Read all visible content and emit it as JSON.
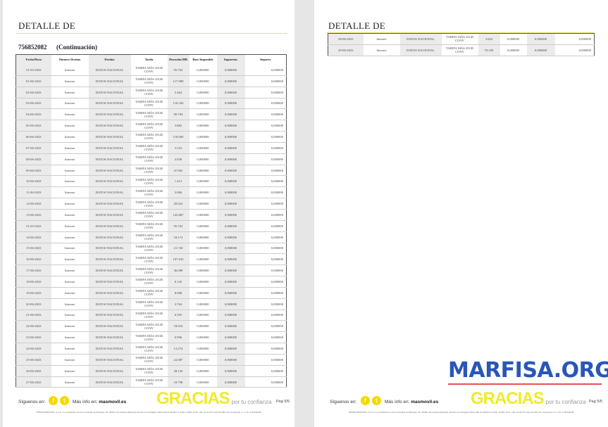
{
  "page1": {
    "title": "DETALLE DE",
    "number": "756852082",
    "continuation": "(Continuación)"
  },
  "page2": {
    "title": "DETALLE DE"
  },
  "columns": [
    "Fecha/Hora",
    "Número Destino",
    "Destino",
    "Tarifa",
    "Duración/MB",
    "Base Imponible",
    "Impuestos",
    "Importe"
  ],
  "rows": [
    [
      "31-05-2023",
      "Internet",
      "DATOS NACIONAL",
      "TARIFA MÁS 25GB CONV",
      "95.702",
      "0,000000",
      "0,000000",
      "0,000000"
    ],
    [
      "01-06-2023",
      "Internet",
      "DATOS NACIONAL",
      "TARIFA MÁS 25GB CONV",
      "117.988",
      "0,000000",
      "0,000000",
      "0,000000"
    ],
    [
      "02-06-2023",
      "Internet",
      "DATOS NACIONAL",
      "TARIFA MÁS 25GB CONV",
      "5.464",
      "0,000000",
      "0,000000",
      "0,000000"
    ],
    [
      "03-06-2023",
      "Internet",
      "DATOS NACIONAL",
      "TARIFA MÁS 25GB CONV",
      "110.326",
      "0,000000",
      "0,000000",
      "0,000000"
    ],
    [
      "04-06-2023",
      "Internet",
      "DATOS NACIONAL",
      "TARIFA MÁS 25GB CONV",
      "90.794",
      "0,000000",
      "0,000000",
      "0,000000"
    ],
    [
      "05-06-2023",
      "Internet",
      "DATOS NACIONAL",
      "TARIFA MÁS 25GB CONV",
      "3.882",
      "0,000000",
      "0,000000",
      "0,000000"
    ],
    [
      "06-06-2023",
      "Internet",
      "DATOS NACIONAL",
      "TARIFA MÁS 25GB CONV",
      "118.600",
      "0,000000",
      "0,000000",
      "0,000000"
    ],
    [
      "07-06-2023",
      "Internet",
      "DATOS NACIONAL",
      "TARIFA MÁS 25GB CONV",
      "3.552",
      "0,000000",
      "0,000000",
      "0,000000"
    ],
    [
      "08-06-2023",
      "Internet",
      "DATOS NACIONAL",
      "TARIFA MÁS 25GB CONV",
      "4.058",
      "0,000000",
      "0,000000",
      "0,000000"
    ],
    [
      "09-06-2023",
      "Internet",
      "DATOS NACIONAL",
      "TARIFA MÁS 25GB CONV",
      "47.902",
      "0,000000",
      "0,000000",
      "0,000000"
    ],
    [
      "10-06-2023",
      "Internet",
      "DATOS NACIONAL",
      "TARIFA MÁS 25GB CONV",
      "1.412",
      "0,000000",
      "0,000000",
      "0,000000"
    ],
    [
      "11-06-2023",
      "Internet",
      "DATOS NACIONAL",
      "TARIFA MÁS 25GB CONV",
      "3.066",
      "0,000000",
      "0,000000",
      "0,000000"
    ],
    [
      "12-06-2023",
      "Internet",
      "DATOS NACIONAL",
      "TARIFA MÁS 25GB CONV",
      "28.041",
      "0,000000",
      "0,000000",
      "0,000000"
    ],
    [
      "13-06-2023",
      "Internet",
      "DATOS NACIONAL",
      "TARIFA MÁS 25GB CONV",
      "143.687",
      "0,000000",
      "0,000000",
      "0,000000"
    ],
    [
      "31-05-2023",
      "Internet",
      "DATOS NACIONAL",
      "TARIFA MÁS 25GB CONV",
      "95.702",
      "0,000000",
      "0,000000",
      "0,000000"
    ],
    [
      "14-06-2023",
      "Internet",
      "DATOS NACIONAL",
      "TARIFA MÁS 25GB CONV",
      "18.174",
      "0,000000",
      "0,000000",
      "0,000000"
    ],
    [
      "15-06-2023",
      "Internet",
      "DATOS NACIONAL",
      "TARIFA MÁS 25GB CONV",
      "21.720",
      "0,000000",
      "0,000000",
      "0,000000"
    ],
    [
      "16-06-2023",
      "Internet",
      "DATOS NACIONAL",
      "TARIFA MÁS 25GB CONV",
      "107.633",
      "0,000000",
      "0,000000",
      "0,000000"
    ],
    [
      "17-06-2023",
      "Internet",
      "DATOS NACIONAL",
      "TARIFA MÁS 25GB CONV",
      "36.098",
      "0,000000",
      "0,000000",
      "0,000000"
    ],
    [
      "18-06-2023",
      "Internet",
      "DATOS NACIONAL",
      "TARIFA MÁS 25GB CONV",
      "0.145",
      "0,000000",
      "0,000000",
      "0,000000"
    ],
    [
      "19-06-2023",
      "Internet",
      "DATOS NACIONAL",
      "TARIFA MÁS 25GB CONV",
      "8.088",
      "0,000000",
      "0,000000",
      "0,000000"
    ],
    [
      "20-06-2023",
      "Internet",
      "DATOS NACIONAL",
      "TARIFA MÁS 25GB CONV",
      "2.764",
      "0,000000",
      "0,000000",
      "0,000000"
    ],
    [
      "21-06-2023",
      "Internet",
      "DATOS NACIONAL",
      "TARIFA MÁS 25GB CONV",
      "6.593",
      "0,000000",
      "0,000000",
      "0,000000"
    ],
    [
      "22-06-2023",
      "Internet",
      "DATOS NACIONAL",
      "TARIFA MÁS 25GB CONV",
      "18.810",
      "0,000000",
      "0,000000",
      "0,000000"
    ],
    [
      "23-06-2023",
      "Internet",
      "DATOS NACIONAL",
      "TARIFA MÁS 25GB CONV",
      "0.996",
      "0,000000",
      "0,000000",
      "0,000000"
    ],
    [
      "24-06-2023",
      "Internet",
      "DATOS NACIONAL",
      "TARIFA MÁS 25GB CONV",
      "12.274",
      "0,000000",
      "0,000000",
      "0,000000"
    ],
    [
      "25-06-2023",
      "Internet",
      "DATOS NACIONAL",
      "TARIFA MÁS 25GB CONV",
      "22.087",
      "0,000000",
      "0,000000",
      "0,000000"
    ],
    [
      "26-06-2023",
      "Internet",
      "DATOS NACIONAL",
      "TARIFA MÁS 25GB CONV",
      "28.120",
      "0,000000",
      "0,000000",
      "0,000000"
    ],
    [
      "27-06-2023",
      "Internet",
      "DATOS NACIONAL",
      "TARIFA MÁS 25GB CONV",
      "18.798",
      "0,000000",
      "0,000000",
      "0,000000"
    ]
  ],
  "rows2": [
    [
      "28-06-2023",
      "Internet",
      "DATOS NACIONAL",
      "TARIFA MÁS 25GB CONV",
      "3.822",
      "0,000000",
      "0,000000",
      "0,000000"
    ],
    [
      "29-06-2023",
      "Internet",
      "DATOS NACIONAL",
      "TARIFA MÁS 25GB CONV",
      "70.339",
      "0,000000",
      "0,000000",
      "0,000000"
    ]
  ],
  "footer": {
    "follow": "Síguenos en:",
    "more_info": "Más info en:",
    "site": "masmovil.es",
    "thanks": "GRACIAS",
    "thanks_sub": "por tu confianza",
    "page1_num": "Pag 5/5",
    "page2_num": "Pag 5/5",
    "fine_print": "XFERA MÓVILES, S.A.U. Con domicilio social en Avenida de Bruselas, 38, 28108, Alcobendas (Madrid), inscrita en el Registro Mercantil de Madrid al Tomo 14.803, Folio 140, sección 8ª, hoja M-186.116, inscripción 1ª. C.I.F. A-82528548"
  },
  "watermark": "MARFISA.ORG",
  "colors": {
    "accent": "#f0ea2a",
    "watermark": "#2a56b8"
  }
}
